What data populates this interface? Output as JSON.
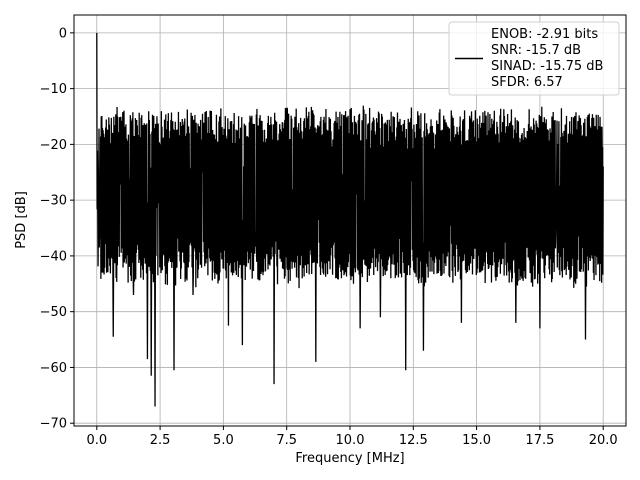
{
  "chart_data": {
    "type": "line",
    "xlabel": "Frequency [MHz]",
    "ylabel": "PSD [dB]",
    "xlim": [
      -0.9,
      20.9
    ],
    "ylim": [
      -70.5,
      3.2
    ],
    "xticks": [
      0.0,
      2.5,
      5.0,
      7.5,
      10.0,
      12.5,
      15.0,
      17.5,
      20.0
    ],
    "xtick_labels": [
      "0.0",
      "2.5",
      "5.0",
      "7.5",
      "10.0",
      "12.5",
      "15.0",
      "17.5",
      "20.0"
    ],
    "yticks": [
      0,
      -10,
      -20,
      -30,
      -40,
      -50,
      -60,
      -70
    ],
    "ytick_labels": [
      "0",
      "−10",
      "−20",
      "−30",
      "−40",
      "−50",
      "−60",
      "−70"
    ],
    "grid": true,
    "legend_position": "top-right",
    "series": [
      {
        "color": "#000000",
        "x_range": [
          0.0,
          20.0
        ],
        "peak": {
          "x": 0.0,
          "y": 0.0
        },
        "upper_envelope_db": -17,
        "lower_envelope_db": -40,
        "deep_nulls": [
          {
            "x": 0.65,
            "y": -54.5
          },
          {
            "x": 1.45,
            "y": -47
          },
          {
            "x": 2.0,
            "y": -58.5
          },
          {
            "x": 2.15,
            "y": -61.5
          },
          {
            "x": 2.3,
            "y": -67
          },
          {
            "x": 3.05,
            "y": -60.5
          },
          {
            "x": 3.8,
            "y": -47
          },
          {
            "x": 5.2,
            "y": -52.5
          },
          {
            "x": 5.75,
            "y": -56
          },
          {
            "x": 7.0,
            "y": -63
          },
          {
            "x": 8.65,
            "y": -59
          },
          {
            "x": 10.4,
            "y": -53
          },
          {
            "x": 11.2,
            "y": -51
          },
          {
            "x": 12.2,
            "y": -60.5
          },
          {
            "x": 12.9,
            "y": -57
          },
          {
            "x": 14.4,
            "y": -52
          },
          {
            "x": 16.55,
            "y": -52
          },
          {
            "x": 17.5,
            "y": -53
          },
          {
            "x": 19.3,
            "y": -55
          }
        ]
      }
    ],
    "legend_entries": [
      "ENOB: -2.91 bits",
      "SNR: -15.7 dB",
      "SINAD: -15.75 dB",
      "SFDR: 6.57"
    ]
  }
}
